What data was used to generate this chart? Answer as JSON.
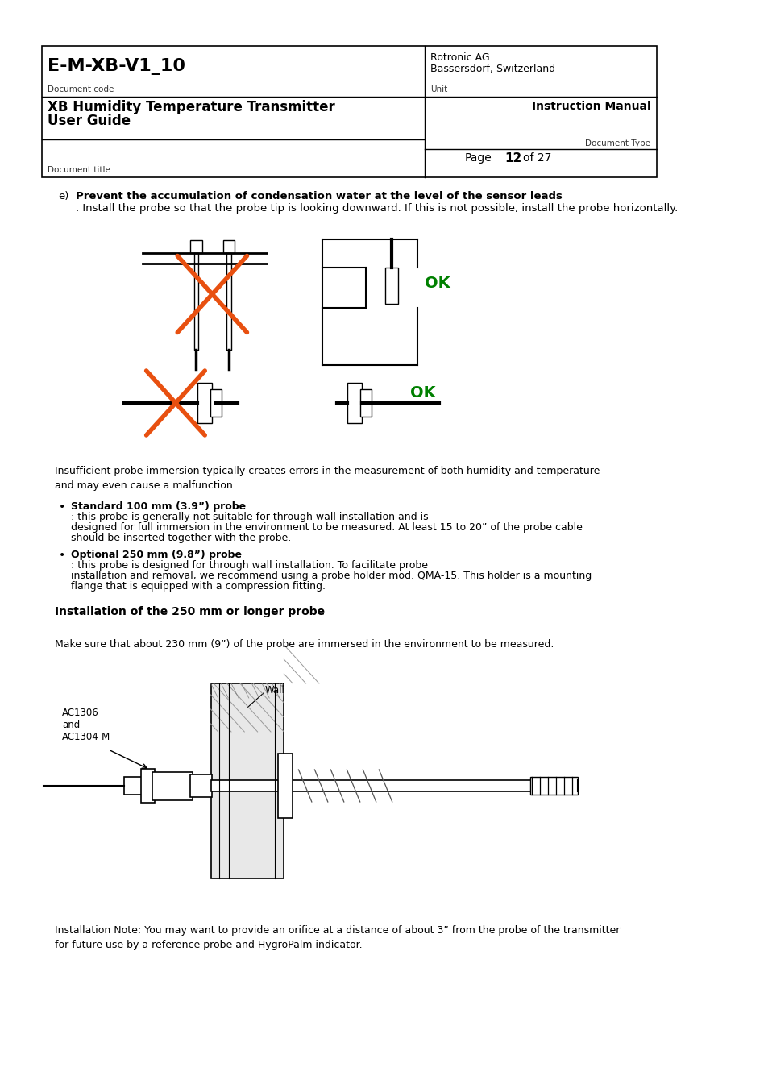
{
  "page_bg": "#ffffff",
  "header": {
    "doc_code": "E-M-XB-V1_10",
    "doc_code_label": "Document code",
    "company": "Rotronic AG",
    "location": "Bassersdorf, Switzerland",
    "unit_label": "Unit",
    "title_line1": "XB Humidity Temperature Transmitter",
    "title_line2": "User Guide",
    "instruction": "Instruction Manual",
    "doc_type_label": "Document Type",
    "page_label": "Page",
    "page_num": "12",
    "page_total": "of 27",
    "doc_title_label": "Document title"
  },
  "body": {
    "item_e_label": "e)",
    "item_e_bold": "Prevent the accumulation of condensation water at the level of the sensor leads",
    "item_e_text": ". Install the probe so that the probe tip is looking downward. If this is not possible, install the probe horizontally.",
    "ok_color": "#008000",
    "para1": "Insufficient probe immersion typically creates errors in the measurement of both humidity and temperature\nand may even cause a malfunction.",
    "bullet1_bold": "Standard 100 mm (3.9”) probe",
    "bullet1_text": ": this probe is generally not suitable for through wall installation and is designed for full immersion in the environment to be measured. At least 15 to 20” of the probe cable should be inserted together with the probe.",
    "bullet2_bold": "Optional 250 mm (9.8”) probe",
    "bullet2_text": ": this probe is designed for through wall installation. To facilitate probe installation and removal, we recommend using a probe holder mod. QMA-15. This holder is a mounting flange that is equipped with a compression fitting.",
    "section_title": "Installation of the 250 mm or longer probe",
    "make_sure_text": "Make sure that about 230 mm (9”) of the probe are immersed in the environment to be measured.",
    "ac_label1": "AC1306",
    "ac_label2": "and",
    "ac_label3": "AC1304-M",
    "wall_label": "Wall",
    "install_note": "Installation Note: You may want to provide an orifice at a distance of about 3” from the probe of the transmitter\nfor future use by a reference probe and HygroPalm indicator."
  }
}
